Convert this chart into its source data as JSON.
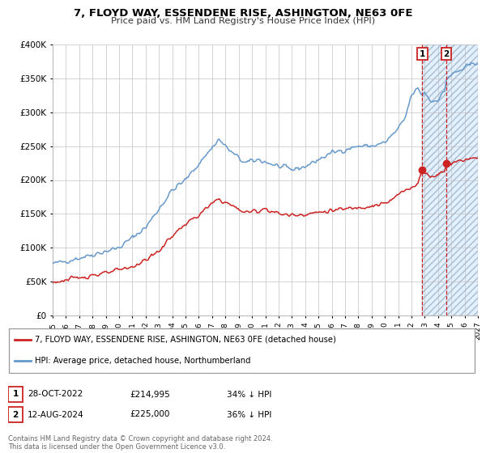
{
  "title": "7, FLOYD WAY, ESSENDENE RISE, ASHINGTON, NE63 0FE",
  "subtitle": "Price paid vs. HM Land Registry's House Price Index (HPI)",
  "legend_line1": "7, FLOYD WAY, ESSENDENE RISE, ASHINGTON, NE63 0FE (detached house)",
  "legend_line2": "HPI: Average price, detached house, Northumberland",
  "footer1": "Contains HM Land Registry data © Crown copyright and database right 2024.",
  "footer2": "This data is licensed under the Open Government Licence v3.0.",
  "sale1_date": "28-OCT-2022",
  "sale1_price": "£214,995",
  "sale1_pct": "34% ↓ HPI",
  "sale2_date": "12-AUG-2024",
  "sale2_price": "£225,000",
  "sale2_pct": "36% ↓ HPI",
  "red_color": "#cc2222",
  "blue_color": "#6699cc",
  "shade_color": "#ddeeff",
  "grid_color": "#cccccc",
  "bg_color": "#ffffff",
  "ylim": [
    0,
    400000
  ],
  "yticks": [
    0,
    50000,
    100000,
    150000,
    200000,
    250000,
    300000,
    350000,
    400000
  ],
  "sale1_x": 2022.82,
  "sale2_x": 2024.62,
  "shade_start": 2022.82,
  "shade_end": 2027.0,
  "xmin": 1995,
  "xmax": 2027,
  "hpi_anchors": [
    [
      1995.0,
      76000
    ],
    [
      1997.0,
      85000
    ],
    [
      1999.0,
      95000
    ],
    [
      2000.0,
      100000
    ],
    [
      2002.0,
      130000
    ],
    [
      2004.0,
      185000
    ],
    [
      2005.0,
      200000
    ],
    [
      2007.5,
      260000
    ],
    [
      2008.5,
      240000
    ],
    [
      2009.5,
      225000
    ],
    [
      2010.5,
      230000
    ],
    [
      2012.0,
      220000
    ],
    [
      2013.0,
      215000
    ],
    [
      2014.0,
      220000
    ],
    [
      2015.5,
      235000
    ],
    [
      2016.0,
      240000
    ],
    [
      2017.0,
      245000
    ],
    [
      2018.0,
      250000
    ],
    [
      2019.0,
      250000
    ],
    [
      2020.0,
      255000
    ],
    [
      2021.0,
      275000
    ],
    [
      2021.5,
      290000
    ],
    [
      2022.0,
      325000
    ],
    [
      2022.5,
      335000
    ],
    [
      2022.82,
      325000
    ],
    [
      2023.0,
      330000
    ],
    [
      2023.5,
      315000
    ],
    [
      2024.0,
      320000
    ],
    [
      2024.5,
      330000
    ],
    [
      2024.62,
      350000
    ],
    [
      2025.0,
      355000
    ],
    [
      2025.5,
      360000
    ],
    [
      2026.0,
      365000
    ],
    [
      2026.5,
      370000
    ],
    [
      2027.0,
      375000
    ]
  ],
  "red_anchors": [
    [
      1995.0,
      49000
    ],
    [
      1996.0,
      52000
    ],
    [
      1997.0,
      56000
    ],
    [
      1998.0,
      60000
    ],
    [
      1999.0,
      62000
    ],
    [
      2000.0,
      67000
    ],
    [
      2001.0,
      72000
    ],
    [
      2002.0,
      82000
    ],
    [
      2003.0,
      95000
    ],
    [
      2004.0,
      118000
    ],
    [
      2005.0,
      135000
    ],
    [
      2006.0,
      148000
    ],
    [
      2007.0,
      165000
    ],
    [
      2007.5,
      172000
    ],
    [
      2008.5,
      162000
    ],
    [
      2009.5,
      152000
    ],
    [
      2010.5,
      155000
    ],
    [
      2011.0,
      158000
    ],
    [
      2012.0,
      150000
    ],
    [
      2013.0,
      148000
    ],
    [
      2014.0,
      150000
    ],
    [
      2015.0,
      152000
    ],
    [
      2016.0,
      155000
    ],
    [
      2017.0,
      157000
    ],
    [
      2018.0,
      160000
    ],
    [
      2019.0,
      162000
    ],
    [
      2020.0,
      165000
    ],
    [
      2020.5,
      170000
    ],
    [
      2021.0,
      178000
    ],
    [
      2021.5,
      185000
    ],
    [
      2022.0,
      190000
    ],
    [
      2022.5,
      195000
    ],
    [
      2022.82,
      215000
    ],
    [
      2023.0,
      210000
    ],
    [
      2023.5,
      205000
    ],
    [
      2024.0,
      208000
    ],
    [
      2024.5,
      215000
    ],
    [
      2024.62,
      225000
    ],
    [
      2025.0,
      225000
    ],
    [
      2025.5,
      228000
    ],
    [
      2026.0,
      230000
    ],
    [
      2026.5,
      232000
    ],
    [
      2027.0,
      235000
    ]
  ],
  "sale1_y": 215000,
  "sale2_y": 225000
}
